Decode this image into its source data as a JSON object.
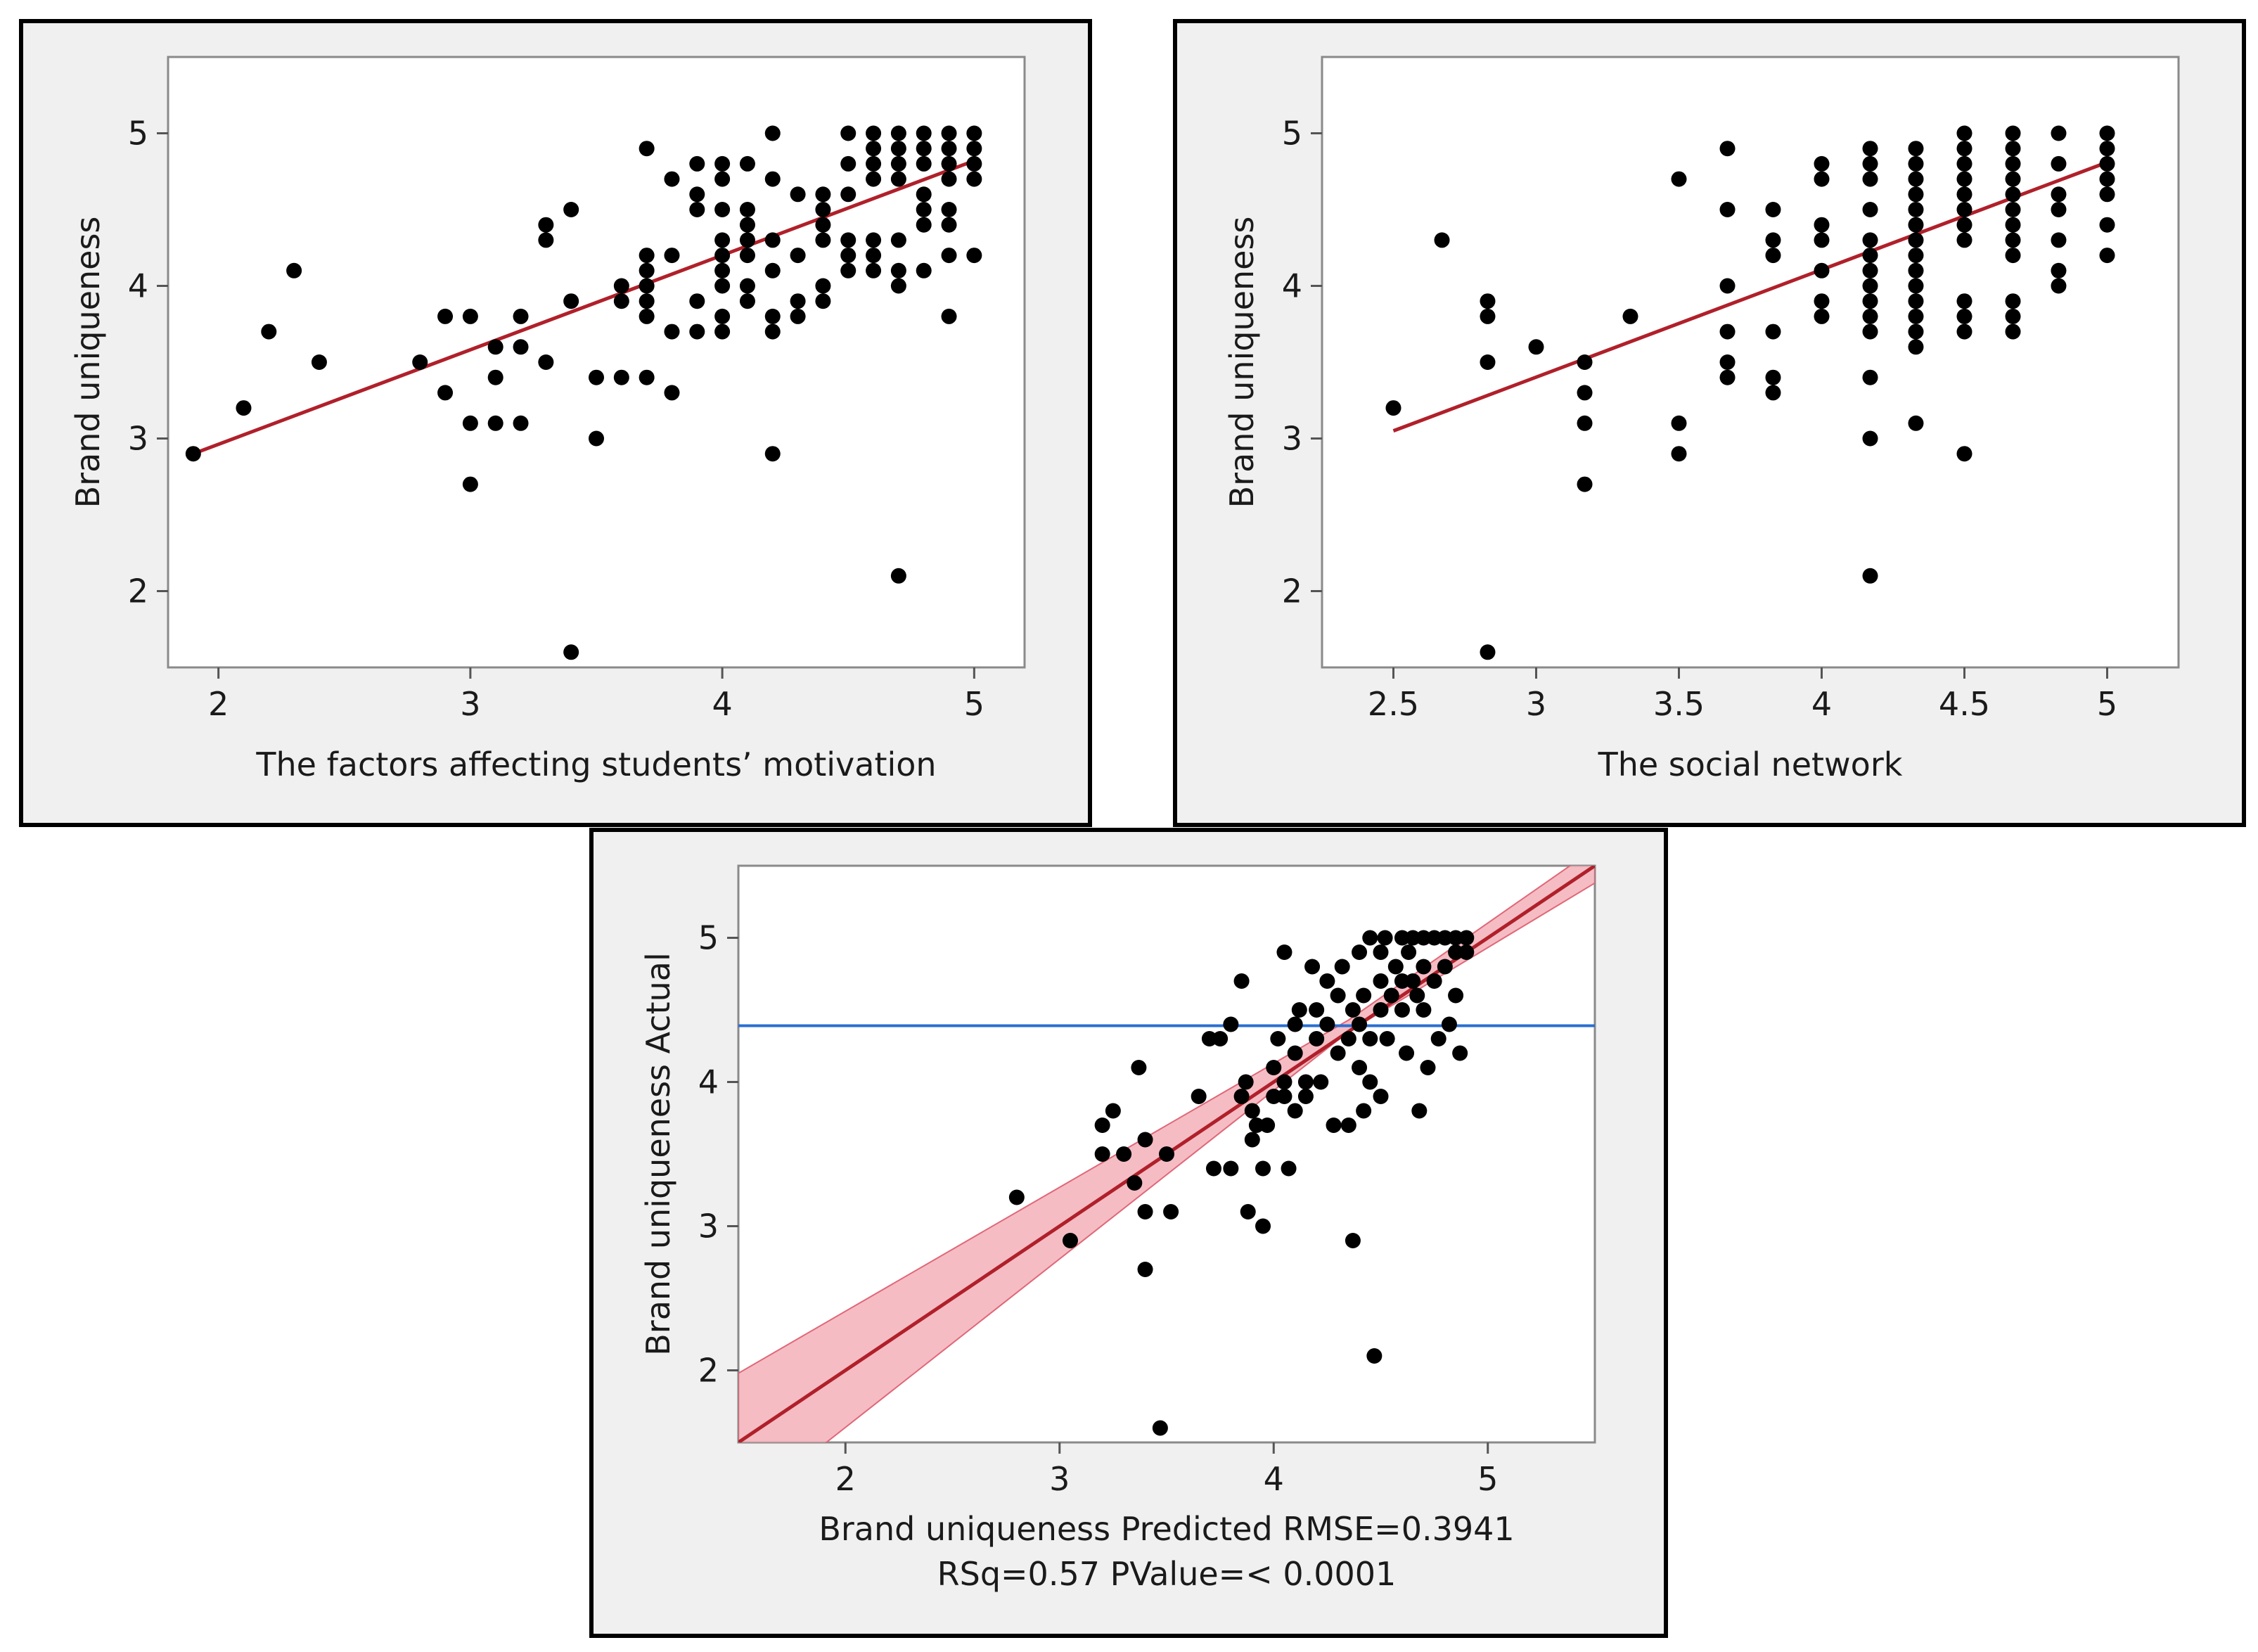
{
  "colors": {
    "panel_bg": "#f0f0f0",
    "frame_bg": "#ffffff",
    "border": "#000000",
    "points": "#000000",
    "fit_line": "#b0202a",
    "confidence_band": "#f2a6b0",
    "mean_line": "#2a6fd1"
  },
  "chart_data": [
    {
      "type": "scatter",
      "xlabel": "The factors affecting students’ motivation",
      "ylabel": "Brand uniqueness",
      "xlim": [
        1.8,
        5.2
      ],
      "ylim": [
        1.5,
        5.5
      ],
      "xticks": [
        "2",
        "3",
        "4",
        "5"
      ],
      "yticks": [
        "2",
        "3",
        "4",
        "5"
      ],
      "fit_line": {
        "x": [
          1.9,
          5.0
        ],
        "y": [
          2.9,
          4.82
        ]
      },
      "points": [
        [
          1.9,
          2.9
        ],
        [
          2.1,
          3.2
        ],
        [
          2.2,
          3.7
        ],
        [
          2.3,
          4.1
        ],
        [
          2.4,
          3.5
        ],
        [
          2.8,
          3.5
        ],
        [
          2.9,
          3.3
        ],
        [
          2.9,
          3.8
        ],
        [
          3.0,
          3.8
        ],
        [
          3.0,
          3.1
        ],
        [
          3.0,
          2.7
        ],
        [
          3.1,
          3.6
        ],
        [
          3.1,
          3.4
        ],
        [
          3.1,
          3.1
        ],
        [
          3.2,
          3.6
        ],
        [
          3.2,
          3.8
        ],
        [
          3.2,
          3.1
        ],
        [
          3.3,
          4.4
        ],
        [
          3.3,
          4.3
        ],
        [
          3.3,
          3.5
        ],
        [
          3.4,
          4.5
        ],
        [
          3.4,
          3.9
        ],
        [
          3.4,
          1.6
        ],
        [
          3.5,
          3.4
        ],
        [
          3.5,
          3.0
        ],
        [
          3.6,
          4.0
        ],
        [
          3.6,
          3.9
        ],
        [
          3.6,
          3.4
        ],
        [
          3.7,
          4.9
        ],
        [
          3.7,
          4.2
        ],
        [
          3.7,
          4.1
        ],
        [
          3.7,
          4.0
        ],
        [
          3.7,
          3.9
        ],
        [
          3.7,
          3.8
        ],
        [
          3.7,
          3.4
        ],
        [
          3.8,
          4.7
        ],
        [
          3.8,
          4.2
        ],
        [
          3.8,
          3.7
        ],
        [
          3.8,
          3.3
        ],
        [
          3.9,
          4.8
        ],
        [
          3.9,
          4.6
        ],
        [
          3.9,
          4.5
        ],
        [
          3.9,
          3.9
        ],
        [
          3.9,
          3.7
        ],
        [
          4.0,
          4.8
        ],
        [
          4.0,
          4.7
        ],
        [
          4.0,
          4.5
        ],
        [
          4.0,
          4.3
        ],
        [
          4.0,
          4.2
        ],
        [
          4.0,
          4.1
        ],
        [
          4.0,
          4.0
        ],
        [
          4.0,
          3.8
        ],
        [
          4.0,
          3.7
        ],
        [
          4.1,
          4.8
        ],
        [
          4.1,
          4.5
        ],
        [
          4.1,
          4.4
        ],
        [
          4.1,
          4.3
        ],
        [
          4.1,
          4.2
        ],
        [
          4.1,
          4.0
        ],
        [
          4.1,
          3.9
        ],
        [
          4.2,
          5.0
        ],
        [
          4.2,
          4.7
        ],
        [
          4.2,
          4.3
        ],
        [
          4.2,
          4.1
        ],
        [
          4.2,
          3.8
        ],
        [
          4.2,
          3.7
        ],
        [
          4.2,
          2.9
        ],
        [
          4.3,
          4.6
        ],
        [
          4.3,
          4.2
        ],
        [
          4.3,
          3.9
        ],
        [
          4.3,
          3.8
        ],
        [
          4.4,
          4.6
        ],
        [
          4.4,
          4.5
        ],
        [
          4.4,
          4.4
        ],
        [
          4.4,
          4.3
        ],
        [
          4.4,
          4.0
        ],
        [
          4.4,
          3.9
        ],
        [
          4.5,
          5.0
        ],
        [
          4.5,
          4.8
        ],
        [
          4.5,
          4.6
        ],
        [
          4.5,
          4.3
        ],
        [
          4.5,
          4.2
        ],
        [
          4.5,
          4.1
        ],
        [
          4.6,
          5.0
        ],
        [
          4.6,
          4.9
        ],
        [
          4.6,
          4.8
        ],
        [
          4.6,
          4.7
        ],
        [
          4.6,
          4.3
        ],
        [
          4.6,
          4.2
        ],
        [
          4.6,
          4.1
        ],
        [
          4.7,
          5.0
        ],
        [
          4.7,
          4.9
        ],
        [
          4.7,
          4.8
        ],
        [
          4.7,
          4.7
        ],
        [
          4.7,
          4.3
        ],
        [
          4.7,
          4.1
        ],
        [
          4.7,
          4.0
        ],
        [
          4.7,
          2.1
        ],
        [
          4.8,
          5.0
        ],
        [
          4.8,
          4.9
        ],
        [
          4.8,
          4.8
        ],
        [
          4.8,
          4.6
        ],
        [
          4.8,
          4.5
        ],
        [
          4.8,
          4.4
        ],
        [
          4.8,
          4.1
        ],
        [
          4.9,
          5.0
        ],
        [
          4.9,
          4.9
        ],
        [
          4.9,
          4.8
        ],
        [
          4.9,
          4.7
        ],
        [
          4.9,
          4.5
        ],
        [
          4.9,
          4.4
        ],
        [
          4.9,
          4.2
        ],
        [
          4.9,
          3.8
        ],
        [
          5.0,
          5.0
        ],
        [
          5.0,
          4.9
        ],
        [
          5.0,
          4.8
        ],
        [
          5.0,
          4.7
        ],
        [
          5.0,
          4.2
        ]
      ]
    },
    {
      "type": "scatter",
      "xlabel": "The social network",
      "ylabel": "Brand uniqueness",
      "xlim": [
        2.25,
        5.25
      ],
      "ylim": [
        1.5,
        5.5
      ],
      "xticks": [
        "2.5",
        "3",
        "3.5",
        "4",
        "4.5",
        "5"
      ],
      "yticks": [
        "2",
        "3",
        "4",
        "5"
      ],
      "fit_line": {
        "x": [
          2.5,
          5.0
        ],
        "y": [
          3.05,
          4.81
        ]
      },
      "points": [
        [
          2.5,
          3.2
        ],
        [
          2.67,
          4.3
        ],
        [
          2.83,
          3.9
        ],
        [
          2.83,
          3.8
        ],
        [
          2.83,
          3.5
        ],
        [
          2.83,
          1.6
        ],
        [
          3.0,
          3.6
        ],
        [
          3.17,
          3.5
        ],
        [
          3.17,
          3.3
        ],
        [
          3.17,
          3.1
        ],
        [
          3.17,
          2.7
        ],
        [
          3.33,
          3.8
        ],
        [
          3.5,
          4.7
        ],
        [
          3.5,
          3.1
        ],
        [
          3.5,
          2.9
        ],
        [
          3.67,
          4.9
        ],
        [
          3.67,
          4.5
        ],
        [
          3.67,
          4.0
        ],
        [
          3.67,
          3.7
        ],
        [
          3.67,
          3.5
        ],
        [
          3.67,
          3.4
        ],
        [
          3.83,
          4.5
        ],
        [
          3.83,
          4.3
        ],
        [
          3.83,
          4.2
        ],
        [
          3.83,
          3.7
        ],
        [
          3.83,
          3.4
        ],
        [
          3.83,
          3.3
        ],
        [
          4.0,
          4.8
        ],
        [
          4.0,
          4.7
        ],
        [
          4.0,
          4.4
        ],
        [
          4.0,
          4.3
        ],
        [
          4.0,
          4.1
        ],
        [
          4.0,
          3.9
        ],
        [
          4.0,
          3.8
        ],
        [
          4.17,
          4.9
        ],
        [
          4.17,
          4.8
        ],
        [
          4.17,
          4.7
        ],
        [
          4.17,
          4.5
        ],
        [
          4.17,
          4.3
        ],
        [
          4.17,
          4.2
        ],
        [
          4.17,
          4.1
        ],
        [
          4.17,
          4.0
        ],
        [
          4.17,
          3.9
        ],
        [
          4.17,
          3.8
        ],
        [
          4.17,
          3.7
        ],
        [
          4.17,
          3.4
        ],
        [
          4.17,
          3.0
        ],
        [
          4.17,
          2.1
        ],
        [
          4.33,
          4.9
        ],
        [
          4.33,
          4.8
        ],
        [
          4.33,
          4.7
        ],
        [
          4.33,
          4.6
        ],
        [
          4.33,
          4.5
        ],
        [
          4.33,
          4.4
        ],
        [
          4.33,
          4.3
        ],
        [
          4.33,
          4.2
        ],
        [
          4.33,
          4.1
        ],
        [
          4.33,
          4.0
        ],
        [
          4.33,
          3.9
        ],
        [
          4.33,
          3.8
        ],
        [
          4.33,
          3.7
        ],
        [
          4.33,
          3.6
        ],
        [
          4.33,
          3.1
        ],
        [
          4.5,
          5.0
        ],
        [
          4.5,
          4.9
        ],
        [
          4.5,
          4.8
        ],
        [
          4.5,
          4.7
        ],
        [
          4.5,
          4.6
        ],
        [
          4.5,
          4.5
        ],
        [
          4.5,
          4.4
        ],
        [
          4.5,
          4.3
        ],
        [
          4.5,
          3.9
        ],
        [
          4.5,
          3.8
        ],
        [
          4.5,
          3.7
        ],
        [
          4.5,
          2.9
        ],
        [
          4.67,
          5.0
        ],
        [
          4.67,
          4.9
        ],
        [
          4.67,
          4.8
        ],
        [
          4.67,
          4.7
        ],
        [
          4.67,
          4.6
        ],
        [
          4.67,
          4.5
        ],
        [
          4.67,
          4.4
        ],
        [
          4.67,
          4.3
        ],
        [
          4.67,
          4.2
        ],
        [
          4.67,
          3.9
        ],
        [
          4.67,
          3.8
        ],
        [
          4.67,
          3.7
        ],
        [
          4.83,
          5.0
        ],
        [
          4.83,
          4.8
        ],
        [
          4.83,
          4.6
        ],
        [
          4.83,
          4.5
        ],
        [
          4.83,
          4.3
        ],
        [
          4.83,
          4.1
        ],
        [
          4.83,
          4.0
        ],
        [
          5.0,
          5.0
        ],
        [
          5.0,
          4.9
        ],
        [
          5.0,
          4.8
        ],
        [
          5.0,
          4.7
        ],
        [
          5.0,
          4.6
        ],
        [
          5.0,
          4.4
        ],
        [
          5.0,
          4.2
        ]
      ]
    },
    {
      "type": "scatter",
      "xlabel": "Brand uniqueness Predicted RMSE=0.3941",
      "xlabel_line2": "RSq=0.57 PValue=< 0.0001",
      "ylabel": "Brand uniqueness Actual",
      "xlim": [
        1.5,
        5.5
      ],
      "ylim": [
        1.5,
        5.5
      ],
      "xticks": [
        "2",
        "3",
        "4",
        "5"
      ],
      "yticks": [
        "2",
        "3",
        "4",
        "5"
      ],
      "fit_line": {
        "x": [
          1.5,
          5.5
        ],
        "y": [
          1.5,
          5.5
        ]
      },
      "confidence_band": {
        "x": [
          1.5,
          4.35,
          5.5
        ],
        "upper": [
          1.98,
          4.43,
          5.62
        ],
        "lower": [
          1.02,
          4.35,
          5.38
        ]
      },
      "mean_line_y": 4.39,
      "points": [
        [
          2.8,
          3.2
        ],
        [
          3.05,
          2.9
        ],
        [
          3.2,
          3.7
        ],
        [
          3.2,
          3.5
        ],
        [
          3.25,
          3.8
        ],
        [
          3.3,
          3.5
        ],
        [
          3.35,
          3.3
        ],
        [
          3.37,
          4.1
        ],
        [
          3.4,
          3.6
        ],
        [
          3.4,
          3.1
        ],
        [
          3.4,
          2.7
        ],
        [
          3.47,
          1.6
        ],
        [
          3.5,
          3.5
        ],
        [
          3.52,
          3.1
        ],
        [
          3.65,
          3.9
        ],
        [
          3.7,
          4.3
        ],
        [
          3.72,
          3.4
        ],
        [
          3.75,
          4.3
        ],
        [
          3.8,
          3.4
        ],
        [
          3.8,
          4.4
        ],
        [
          3.85,
          4.7
        ],
        [
          3.85,
          3.9
        ],
        [
          3.87,
          4.0
        ],
        [
          3.88,
          3.1
        ],
        [
          3.9,
          3.6
        ],
        [
          3.9,
          3.8
        ],
        [
          3.92,
          3.7
        ],
        [
          3.95,
          3.4
        ],
        [
          3.95,
          3.0
        ],
        [
          3.97,
          3.7
        ],
        [
          4.0,
          4.1
        ],
        [
          4.0,
          3.9
        ],
        [
          4.02,
          4.3
        ],
        [
          4.05,
          4.9
        ],
        [
          4.05,
          4.0
        ],
        [
          4.05,
          3.9
        ],
        [
          4.07,
          3.4
        ],
        [
          4.1,
          4.4
        ],
        [
          4.1,
          4.2
        ],
        [
          4.1,
          3.8
        ],
        [
          4.12,
          4.5
        ],
        [
          4.15,
          4.0
        ],
        [
          4.15,
          3.9
        ],
        [
          4.18,
          4.8
        ],
        [
          4.2,
          4.5
        ],
        [
          4.2,
          4.3
        ],
        [
          4.22,
          4.0
        ],
        [
          4.25,
          4.7
        ],
        [
          4.25,
          4.4
        ],
        [
          4.28,
          3.7
        ],
        [
          4.3,
          4.6
        ],
        [
          4.3,
          4.2
        ],
        [
          4.32,
          4.8
        ],
        [
          4.35,
          4.3
        ],
        [
          4.35,
          3.7
        ],
        [
          4.37,
          4.5
        ],
        [
          4.37,
          2.9
        ],
        [
          4.4,
          4.9
        ],
        [
          4.4,
          4.4
        ],
        [
          4.4,
          4.1
        ],
        [
          4.42,
          4.6
        ],
        [
          4.42,
          3.8
        ],
        [
          4.45,
          5.0
        ],
        [
          4.45,
          4.3
        ],
        [
          4.45,
          4.0
        ],
        [
          4.47,
          2.1
        ],
        [
          4.5,
          4.9
        ],
        [
          4.5,
          4.7
        ],
        [
          4.5,
          4.5
        ],
        [
          4.5,
          3.9
        ],
        [
          4.52,
          5.0
        ],
        [
          4.53,
          4.3
        ],
        [
          4.55,
          4.6
        ],
        [
          4.57,
          4.8
        ],
        [
          4.6,
          5.0
        ],
        [
          4.6,
          4.7
        ],
        [
          4.6,
          4.5
        ],
        [
          4.62,
          4.2
        ],
        [
          4.63,
          4.9
        ],
        [
          4.65,
          5.0
        ],
        [
          4.65,
          4.7
        ],
        [
          4.67,
          4.6
        ],
        [
          4.68,
          3.8
        ],
        [
          4.7,
          5.0
        ],
        [
          4.7,
          4.8
        ],
        [
          4.7,
          4.5
        ],
        [
          4.72,
          4.1
        ],
        [
          4.75,
          5.0
        ],
        [
          4.75,
          4.7
        ],
        [
          4.77,
          4.3
        ],
        [
          4.8,
          5.0
        ],
        [
          4.8,
          4.8
        ],
        [
          4.82,
          4.4
        ],
        [
          4.85,
          5.0
        ],
        [
          4.85,
          4.9
        ],
        [
          4.85,
          4.6
        ],
        [
          4.87,
          4.2
        ],
        [
          4.9,
          5.0
        ],
        [
          4.9,
          4.9
        ]
      ]
    }
  ]
}
